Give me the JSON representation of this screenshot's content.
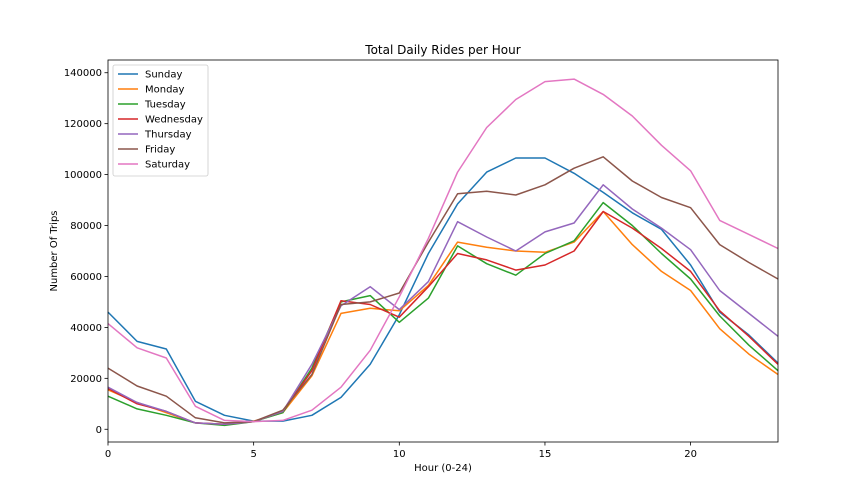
{
  "chart_data": {
    "type": "line",
    "title": "Total Daily Rides per Hour",
    "xlabel": "Hour (0-24)",
    "ylabel": "Number Of Trips",
    "xlim": [
      0,
      23
    ],
    "ylim": [
      -5000,
      145000
    ],
    "xticks": [
      0,
      5,
      10,
      15,
      20
    ],
    "yticks": [
      0,
      20000,
      40000,
      60000,
      80000,
      100000,
      120000,
      140000
    ],
    "grid": false,
    "legend_position": "top-left",
    "x": [
      0,
      1,
      2,
      3,
      4,
      5,
      6,
      7,
      8,
      9,
      10,
      11,
      12,
      13,
      14,
      15,
      16,
      17,
      18,
      19,
      20,
      21,
      22,
      23
    ],
    "series": [
      {
        "name": "Sunday",
        "color": "#1f77b4",
        "values": [
          46000,
          34500,
          31500,
          11000,
          5500,
          3200,
          3200,
          5500,
          12500,
          25500,
          45000,
          69000,
          88500,
          101000,
          106500,
          106500,
          100500,
          93000,
          85000,
          78500,
          64500,
          46000,
          37000,
          26000
        ]
      },
      {
        "name": "Monday",
        "color": "#ff7f0e",
        "values": [
          15500,
          10500,
          6500,
          2500,
          2000,
          3200,
          6500,
          21000,
          45500,
          47500,
          46500,
          56500,
          73500,
          71500,
          70000,
          69500,
          73500,
          85500,
          72500,
          62000,
          54500,
          39500,
          29500,
          21500
        ]
      },
      {
        "name": "Tuesday",
        "color": "#2ca02c",
        "values": [
          13000,
          8000,
          5500,
          2500,
          1500,
          3000,
          6500,
          24000,
          50000,
          52500,
          42000,
          51500,
          72000,
          65000,
          60500,
          69000,
          74000,
          89000,
          80000,
          69000,
          59000,
          44500,
          33000,
          23000
        ]
      },
      {
        "name": "Wednesday",
        "color": "#d62728",
        "values": [
          16000,
          10000,
          7000,
          2500,
          2000,
          3000,
          7000,
          23000,
          50500,
          49000,
          44000,
          56000,
          69000,
          66500,
          62500,
          64500,
          70000,
          85500,
          79000,
          71000,
          62000,
          46500,
          36500,
          25500
        ]
      },
      {
        "name": "Thursday",
        "color": "#9467bd",
        "values": [
          16500,
          10500,
          7000,
          2500,
          2000,
          3000,
          7000,
          25500,
          48500,
          56000,
          47000,
          58000,
          81500,
          75500,
          70000,
          77500,
          81000,
          96000,
          86500,
          79000,
          70500,
          54500,
          45500,
          36500
        ]
      },
      {
        "name": "Friday",
        "color": "#8c564b",
        "values": [
          24000,
          17000,
          13000,
          4500,
          2500,
          3000,
          7500,
          21500,
          49000,
          50000,
          53500,
          73500,
          92500,
          93500,
          92000,
          96000,
          102500,
          107000,
          97500,
          91000,
          87000,
          72500,
          65500,
          59000
        ]
      },
      {
        "name": "Saturday",
        "color": "#e377c2",
        "values": [
          41500,
          32000,
          28000,
          9000,
          3500,
          3000,
          3500,
          7500,
          16500,
          31000,
          52000,
          75000,
          101000,
          118500,
          129500,
          136500,
          137500,
          131500,
          123000,
          111500,
          101500,
          82000,
          76500,
          71000
        ]
      }
    ]
  }
}
